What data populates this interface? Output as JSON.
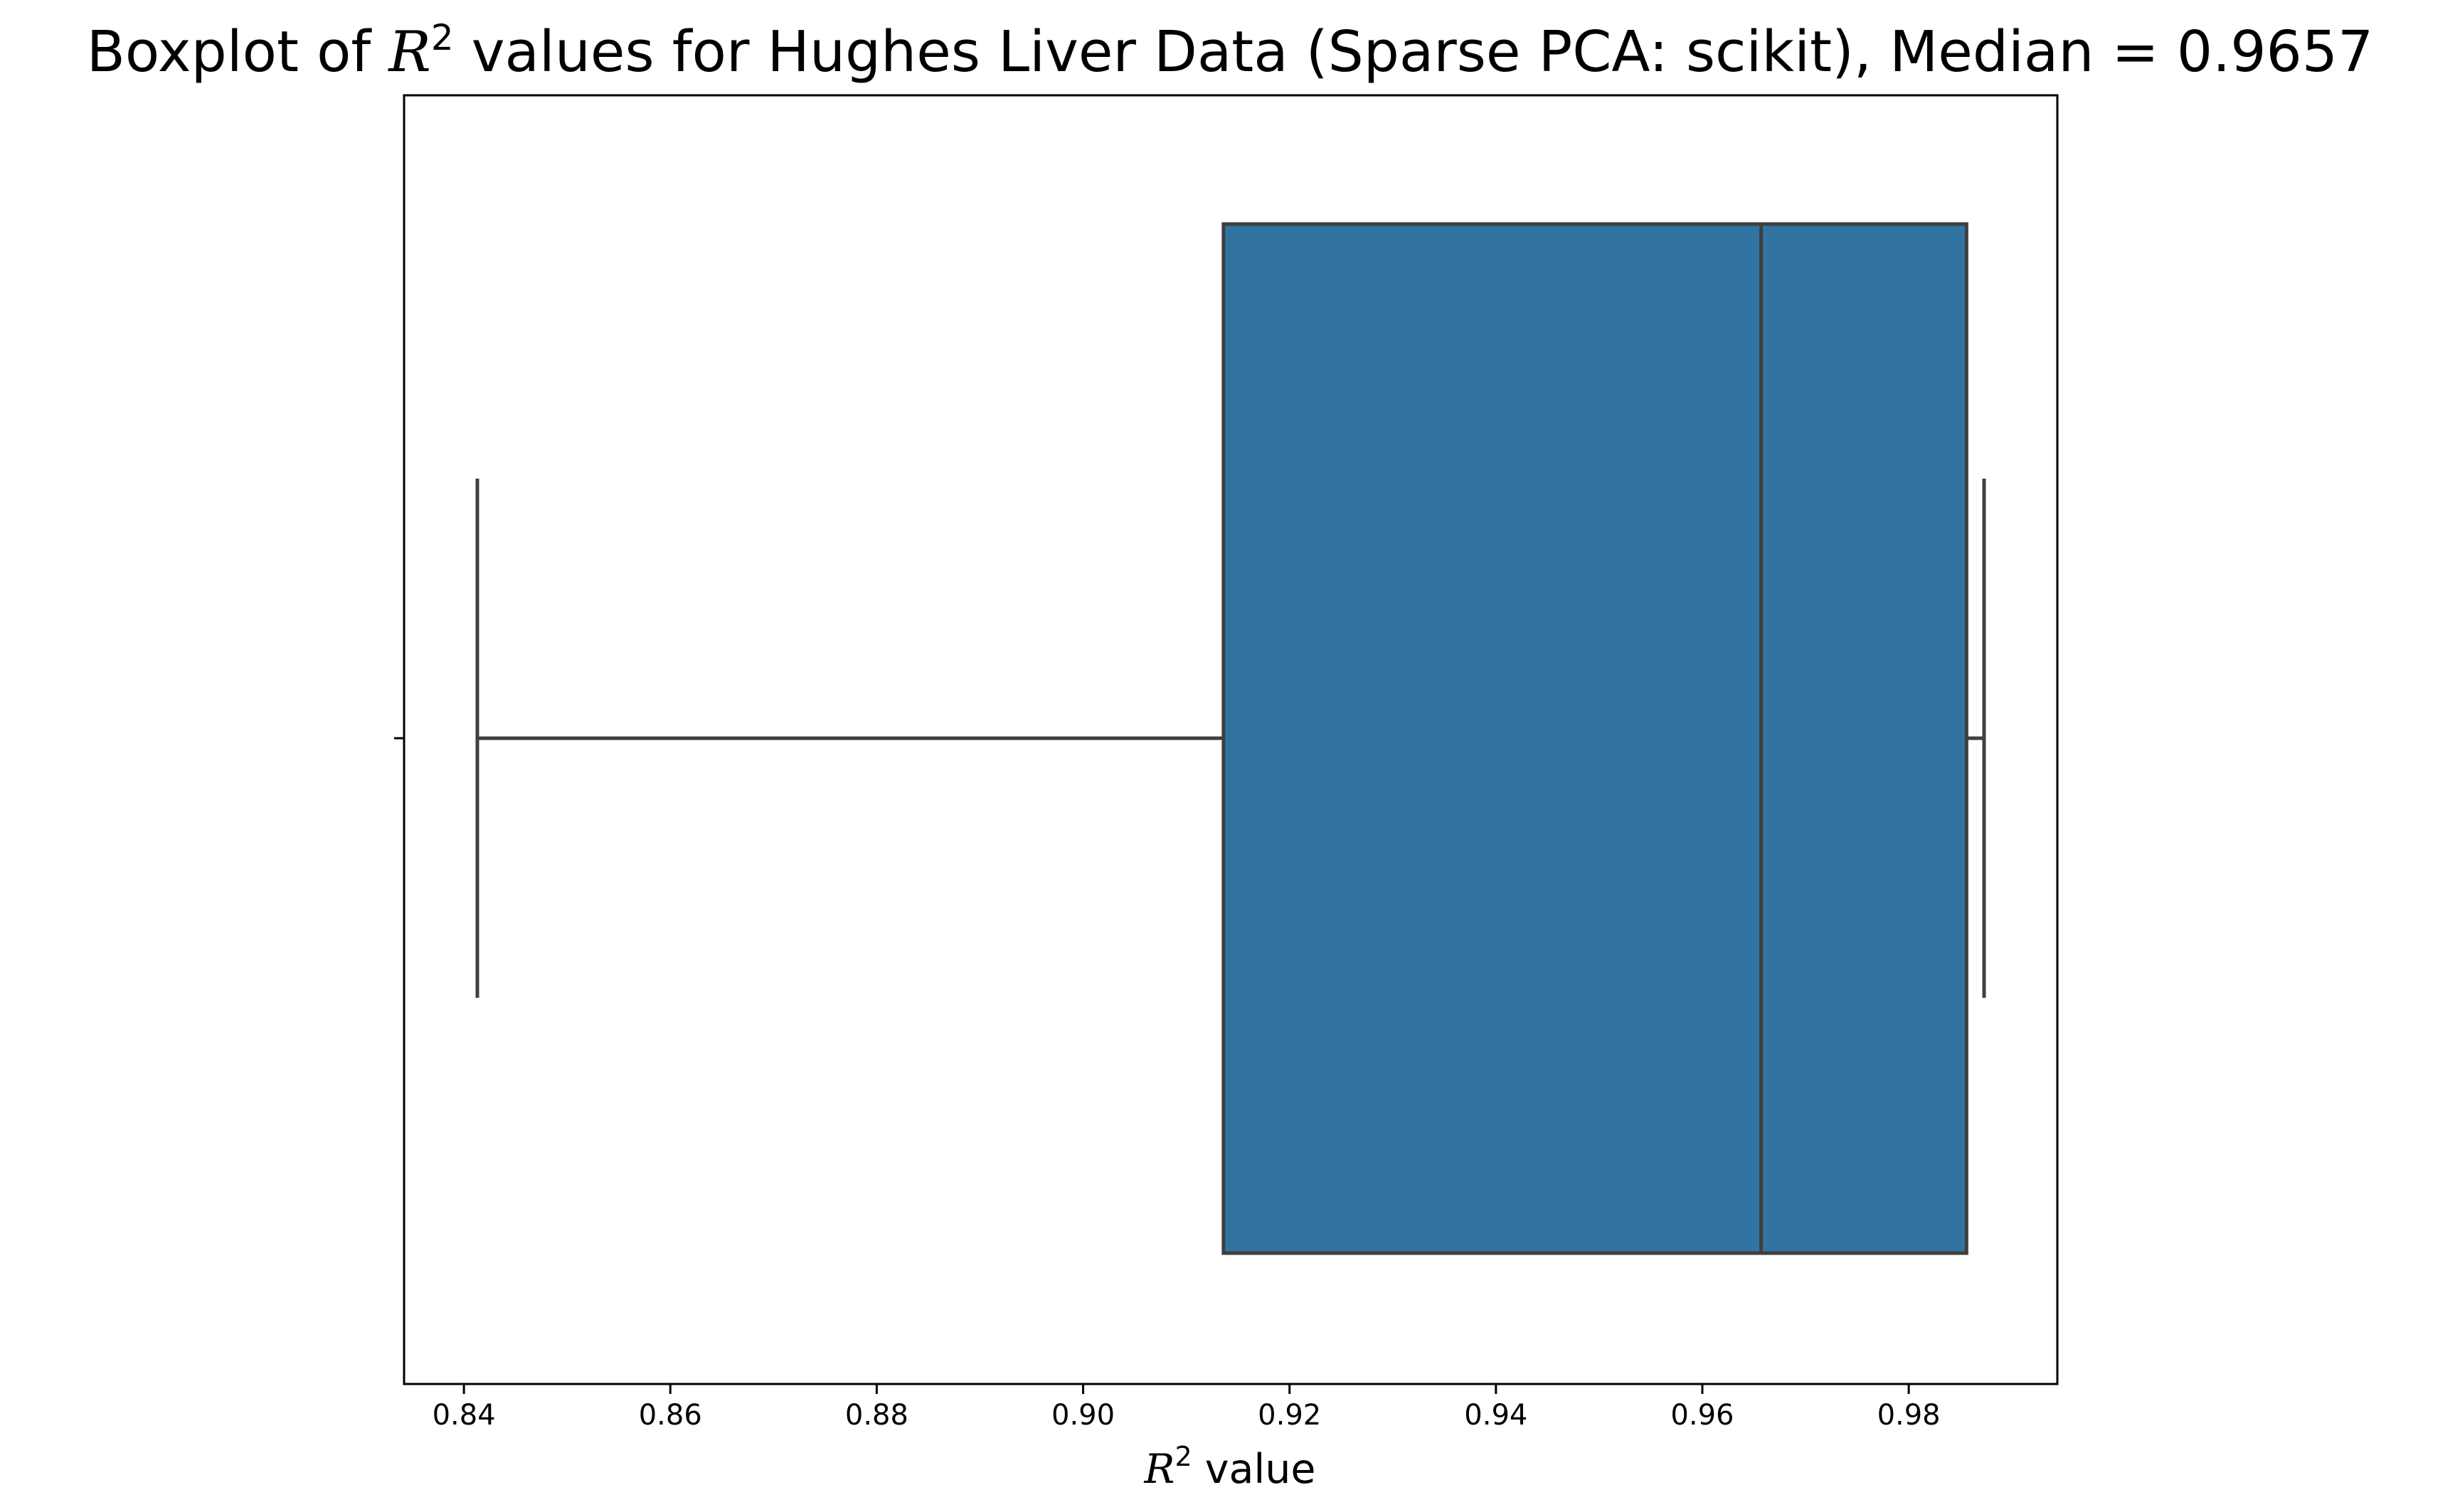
{
  "chart_data": {
    "type": "boxplot",
    "orientation": "horizontal",
    "title": {
      "prefix": "Boxplot of ",
      "math_symbol": "R",
      "math_superscript": "2",
      "suffix": " values for Hughes Liver Data (Sparse PCA: scikit), Median = 0.9657"
    },
    "xlabel": {
      "math_symbol": "R",
      "math_superscript": "2",
      "suffix": " value"
    },
    "xlim": [
      0.8342,
      0.9944
    ],
    "xticks": [
      "0.84",
      "0.86",
      "0.88",
      "0.90",
      "0.92",
      "0.94",
      "0.96",
      "0.98"
    ],
    "box": {
      "whisker_low": 0.8413,
      "q1": 0.9136,
      "median": 0.9657,
      "q3": 0.9856,
      "whisker_high": 0.9873
    },
    "colors": {
      "box_fill": "#3274a1",
      "line": "#3f3f3f",
      "axes": "#000000"
    },
    "grid": false
  }
}
